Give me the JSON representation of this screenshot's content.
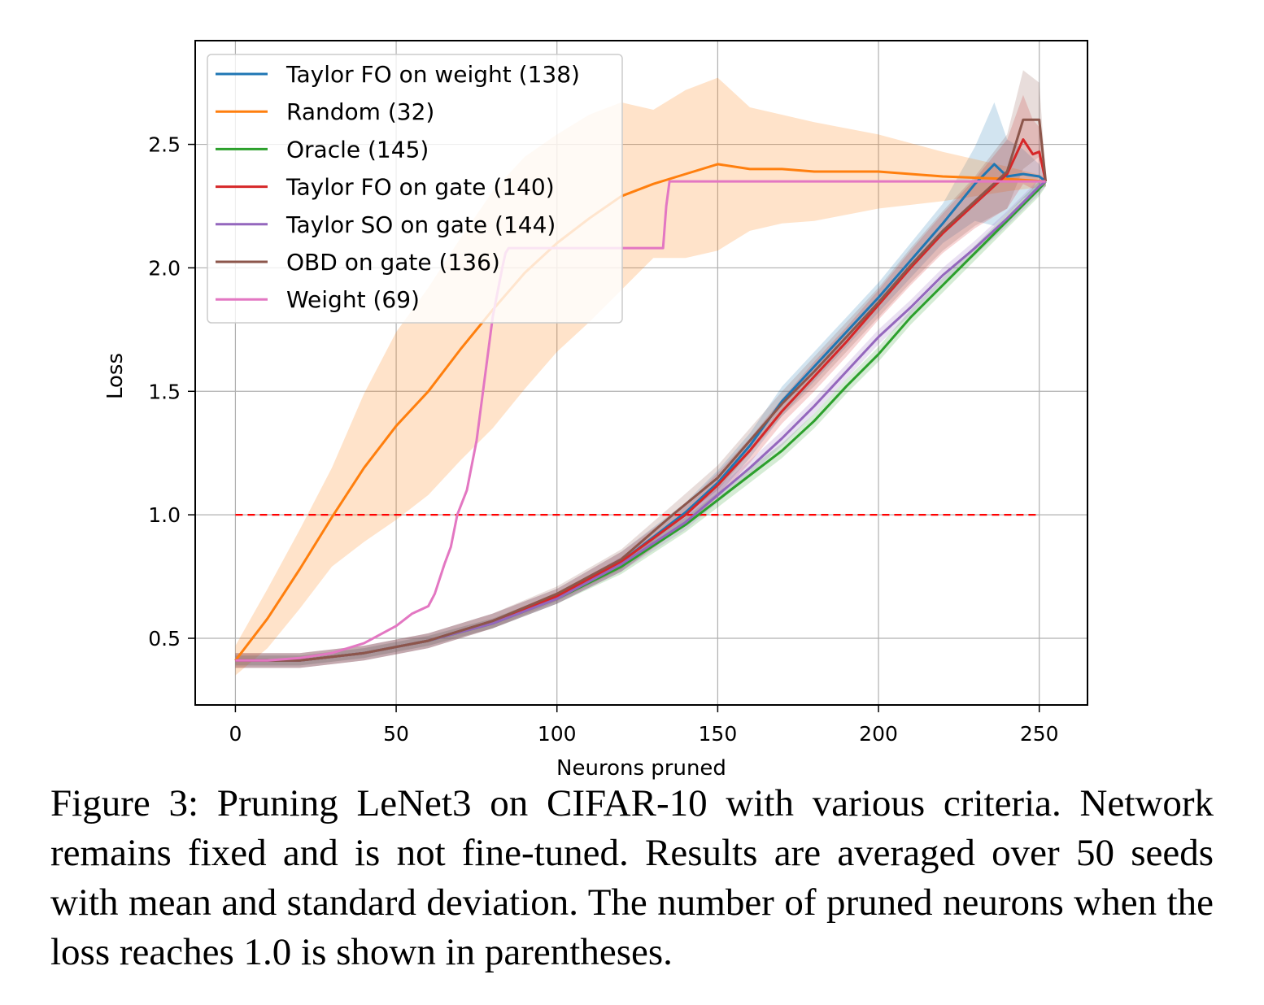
{
  "chart_data": {
    "type": "line",
    "xlabel": "Neurons pruned",
    "ylabel": "Loss",
    "xlim": [
      -12.5,
      265
    ],
    "ylim": [
      0.23,
      2.92
    ],
    "xticks": [
      0,
      50,
      100,
      150,
      200,
      250
    ],
    "yticks": [
      0.5,
      1.0,
      1.5,
      2.0,
      2.5
    ],
    "xtick_labels": [
      "0",
      "50",
      "100",
      "150",
      "200",
      "250"
    ],
    "ytick_labels": [
      "0.5",
      "1.0",
      "1.5",
      "2.0",
      "2.5"
    ],
    "grid": true,
    "legend_position": "upper left",
    "threshold": {
      "y": 1.0,
      "x_range": [
        0,
        250
      ],
      "color": "#ff0000",
      "style": "dashed"
    },
    "series": [
      {
        "name": "Taylor FO on weight (138)",
        "color": "#1f77b4",
        "x": [
          0,
          20,
          40,
          60,
          80,
          100,
          120,
          140,
          150,
          160,
          170,
          180,
          190,
          200,
          210,
          220,
          230,
          236,
          240,
          245,
          250,
          252
        ],
        "y": [
          0.41,
          0.41,
          0.44,
          0.49,
          0.57,
          0.67,
          0.81,
          1.01,
          1.13,
          1.28,
          1.46,
          1.6,
          1.74,
          1.88,
          2.03,
          2.18,
          2.34,
          2.42,
          2.37,
          2.38,
          2.37,
          2.35
        ],
        "band": [
          0.03,
          0.03,
          0.03,
          0.03,
          0.03,
          0.03,
          0.04,
          0.04,
          0.05,
          0.05,
          0.06,
          0.06,
          0.06,
          0.06,
          0.07,
          0.08,
          0.15,
          0.25,
          0.15,
          0.1,
          0.05,
          0.02
        ]
      },
      {
        "name": "Random (32)",
        "color": "#ff7f0e",
        "x": [
          0,
          10,
          20,
          30,
          40,
          50,
          60,
          70,
          80,
          90,
          100,
          110,
          120,
          130,
          140,
          150,
          160,
          170,
          180,
          200,
          220,
          240,
          252
        ],
        "y": [
          0.41,
          0.58,
          0.78,
          0.99,
          1.19,
          1.36,
          1.5,
          1.67,
          1.83,
          1.98,
          2.1,
          2.2,
          2.29,
          2.34,
          2.38,
          2.42,
          2.4,
          2.4,
          2.39,
          2.39,
          2.37,
          2.36,
          2.35
        ],
        "band": [
          0.06,
          0.12,
          0.16,
          0.2,
          0.3,
          0.38,
          0.42,
          0.45,
          0.48,
          0.47,
          0.44,
          0.42,
          0.38,
          0.3,
          0.34,
          0.35,
          0.25,
          0.22,
          0.2,
          0.15,
          0.1,
          0.05,
          0.02
        ]
      },
      {
        "name": "Oracle (145)",
        "color": "#2ca02c",
        "x": [
          0,
          20,
          40,
          60,
          80,
          100,
          120,
          140,
          150,
          160,
          170,
          180,
          190,
          200,
          210,
          220,
          230,
          240,
          250,
          252
        ],
        "y": [
          0.41,
          0.41,
          0.44,
          0.49,
          0.56,
          0.66,
          0.79,
          0.96,
          1.06,
          1.16,
          1.26,
          1.38,
          1.52,
          1.65,
          1.8,
          1.93,
          2.06,
          2.19,
          2.32,
          2.35
        ],
        "band": [
          0.02,
          0.02,
          0.02,
          0.02,
          0.02,
          0.02,
          0.03,
          0.03,
          0.03,
          0.03,
          0.03,
          0.03,
          0.03,
          0.03,
          0.03,
          0.03,
          0.03,
          0.03,
          0.03,
          0.02
        ]
      },
      {
        "name": "Taylor FO on gate (140)",
        "color": "#d62728",
        "x": [
          0,
          20,
          40,
          60,
          80,
          100,
          120,
          140,
          150,
          160,
          170,
          180,
          190,
          200,
          210,
          220,
          230,
          240,
          245,
          248,
          250,
          252
        ],
        "y": [
          0.41,
          0.41,
          0.44,
          0.49,
          0.57,
          0.67,
          0.81,
          1.0,
          1.12,
          1.26,
          1.42,
          1.56,
          1.7,
          1.85,
          2.0,
          2.14,
          2.26,
          2.38,
          2.52,
          2.46,
          2.47,
          2.35
        ],
        "band": [
          0.03,
          0.03,
          0.03,
          0.03,
          0.03,
          0.03,
          0.04,
          0.04,
          0.05,
          0.05,
          0.05,
          0.06,
          0.06,
          0.06,
          0.07,
          0.08,
          0.1,
          0.14,
          0.18,
          0.14,
          0.1,
          0.02
        ]
      },
      {
        "name": "Taylor SO on gate (144)",
        "color": "#9467bd",
        "x": [
          0,
          20,
          40,
          60,
          80,
          100,
          120,
          140,
          150,
          160,
          170,
          180,
          190,
          200,
          210,
          220,
          230,
          240,
          250,
          252
        ],
        "y": [
          0.41,
          0.41,
          0.44,
          0.49,
          0.56,
          0.66,
          0.8,
          0.97,
          1.08,
          1.19,
          1.31,
          1.44,
          1.58,
          1.72,
          1.84,
          1.97,
          2.08,
          2.2,
          2.33,
          2.35
        ],
        "band": [
          0.02,
          0.02,
          0.02,
          0.02,
          0.02,
          0.02,
          0.03,
          0.03,
          0.03,
          0.03,
          0.03,
          0.03,
          0.03,
          0.03,
          0.03,
          0.03,
          0.03,
          0.03,
          0.03,
          0.02
        ]
      },
      {
        "name": "OBD on gate (136)",
        "color": "#8c564b",
        "x": [
          0,
          20,
          40,
          60,
          80,
          100,
          120,
          136,
          150,
          160,
          170,
          180,
          190,
          200,
          210,
          220,
          230,
          240,
          245,
          250,
          252
        ],
        "y": [
          0.41,
          0.41,
          0.44,
          0.49,
          0.57,
          0.68,
          0.82,
          1.0,
          1.15,
          1.3,
          1.45,
          1.58,
          1.72,
          1.86,
          2.01,
          2.15,
          2.27,
          2.39,
          2.6,
          2.6,
          2.35
        ],
        "band": [
          0.03,
          0.03,
          0.03,
          0.03,
          0.03,
          0.03,
          0.04,
          0.04,
          0.05,
          0.05,
          0.05,
          0.06,
          0.06,
          0.06,
          0.07,
          0.08,
          0.1,
          0.15,
          0.2,
          0.15,
          0.02
        ]
      },
      {
        "name": "Weight (69)",
        "color": "#e377c2",
        "x": [
          0,
          10,
          20,
          30,
          40,
          50,
          55,
          60,
          62,
          65,
          67,
          69,
          72,
          75,
          78,
          80,
          83,
          84,
          85,
          90,
          100,
          110,
          120,
          130,
          131,
          132,
          133,
          134,
          135,
          140,
          150,
          200,
          250,
          252
        ],
        "y": [
          0.41,
          0.41,
          0.42,
          0.44,
          0.48,
          0.55,
          0.6,
          0.63,
          0.68,
          0.8,
          0.87,
          1.0,
          1.1,
          1.3,
          1.6,
          1.8,
          2.0,
          2.06,
          2.08,
          2.08,
          2.08,
          2.08,
          2.08,
          2.08,
          2.08,
          2.08,
          2.08,
          2.25,
          2.35,
          2.35,
          2.35,
          2.35,
          2.35,
          2.35
        ],
        "band": null
      }
    ]
  },
  "caption": "Figure 3: Pruning LeNet3 on CIFAR-10 with various criteria. Network remains fixed and is not fine-tuned. Results are averaged over 50 seeds with mean and standard deviation. The number of pruned neurons when the loss reaches 1.0 is shown in parentheses."
}
